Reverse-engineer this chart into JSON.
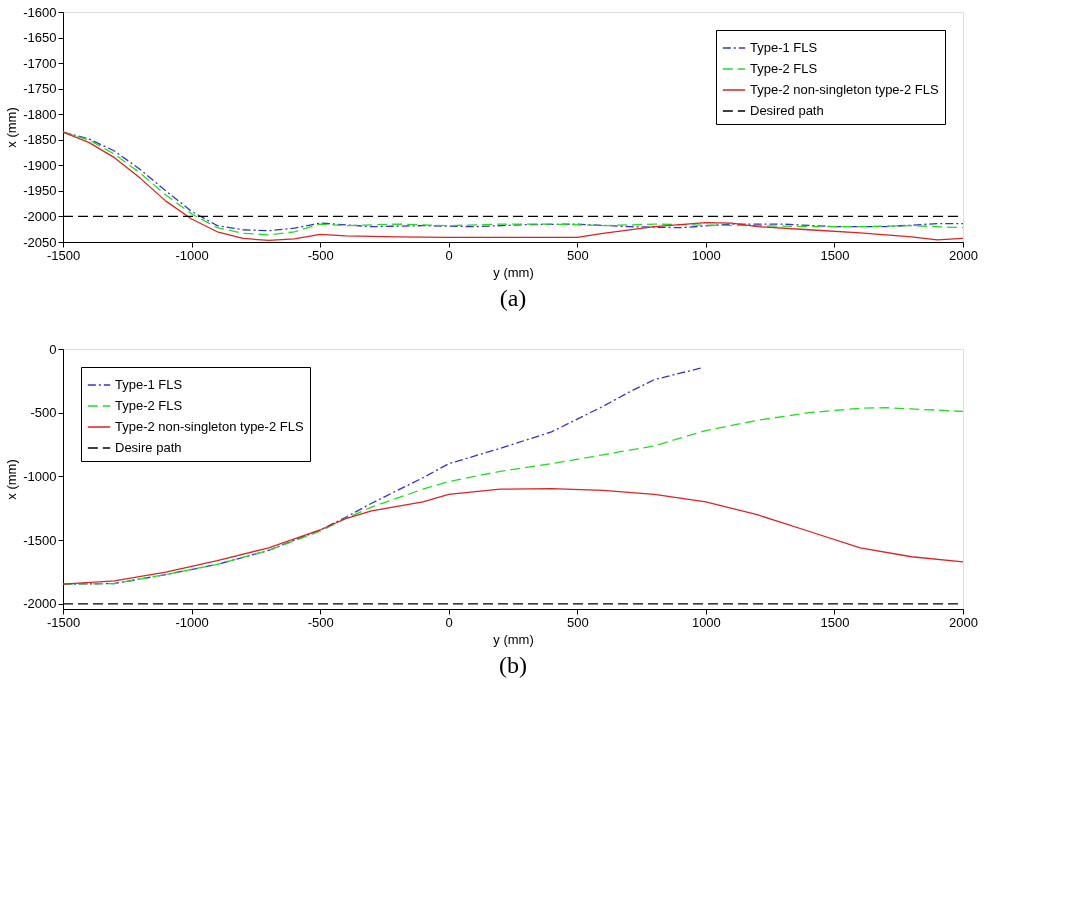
{
  "chart_data": [
    {
      "type": "line",
      "xlabel": "y (mm)",
      "ylabel": "x (mm)",
      "xlim": [
        -1500,
        2000
      ],
      "ylim": [
        -2050,
        -1600
      ],
      "xticks": [
        -1500,
        -1000,
        -500,
        0,
        500,
        1000,
        1500,
        2000
      ],
      "yticks": [
        -2050,
        -2000,
        -1950,
        -1900,
        -1850,
        -1800,
        -1750,
        -1700,
        -1650,
        -1600
      ],
      "grid": false,
      "legend": "top right",
      "annotations": [
        "(a)"
      ],
      "series": [
        {
          "name": "Type-1 FLS",
          "color": "#3333cc",
          "line_style": "dashdot",
          "x": [
            -1500,
            -1400,
            -1300,
            -1200,
            -1100,
            -1000,
            -900,
            -800,
            -700,
            -600,
            -500,
            -300,
            -100,
            100,
            300,
            500,
            700,
            900,
            1100,
            1300,
            1500,
            1700,
            1900,
            2000
          ],
          "values": [
            -1835,
            -1848,
            -1872,
            -1908,
            -1950,
            -1990,
            -2018,
            -2026,
            -2028,
            -2023,
            -2013,
            -2020,
            -2018,
            -2020,
            -2016,
            -2015,
            -2020,
            -2022,
            -2015,
            -2015,
            -2020,
            -2020,
            -2014,
            -2014
          ]
        },
        {
          "name": "Type-2 FLS",
          "color": "#22dd22",
          "line_style": "dashed",
          "x": [
            -1500,
            -1400,
            -1300,
            -1200,
            -1100,
            -1000,
            -900,
            -800,
            -700,
            -600,
            -500,
            -400,
            -200,
            0,
            200,
            400,
            600,
            800,
            1000,
            1200,
            1400,
            1600,
            1800,
            2000
          ],
          "values": [
            -1835,
            -1850,
            -1878,
            -1915,
            -1958,
            -1995,
            -2022,
            -2033,
            -2036,
            -2030,
            -2015,
            -2018,
            -2015,
            -2018,
            -2015,
            -2015,
            -2018,
            -2015,
            -2017,
            -2018,
            -2020,
            -2020,
            -2018,
            -2022
          ]
        },
        {
          "name": "Type-2 non-singleton type-2 FLS",
          "color": "#dd2222",
          "line_style": "solid",
          "x": [
            -1500,
            -1400,
            -1300,
            -1200,
            -1100,
            -1000,
            -900,
            -800,
            -700,
            -600,
            -500,
            -400,
            -200,
            0,
            200,
            500,
            600,
            800,
            1000,
            1100,
            1200,
            1400,
            1600,
            1800,
            1900,
            2000
          ],
          "values": [
            -1835,
            -1855,
            -1885,
            -1925,
            -1970,
            -2005,
            -2030,
            -2043,
            -2047,
            -2044,
            -2035,
            -2038,
            -2040,
            -2041,
            -2041,
            -2041,
            -2033,
            -2020,
            -2012,
            -2013,
            -2020,
            -2026,
            -2032,
            -2040,
            -2046,
            -2043
          ]
        },
        {
          "name": "Desired path",
          "color": "#000000",
          "line_style": "dashed",
          "x": [
            -1500,
            2000
          ],
          "values": [
            -2000,
            -2000
          ]
        }
      ]
    },
    {
      "type": "line",
      "xlabel": "y (mm)",
      "ylabel": "x (mm)",
      "xlim": [
        -1500,
        2000
      ],
      "ylim": [
        -2040,
        0
      ],
      "xticks": [
        -1500,
        -1000,
        -500,
        0,
        500,
        1000,
        1500,
        2000
      ],
      "yticks": [
        -2000,
        -1500,
        -1000,
        -500,
        0
      ],
      "grid": false,
      "legend": "top left",
      "annotations": [
        "(b)"
      ],
      "series": [
        {
          "name": "Type-1 FLS",
          "color": "#3333cc",
          "line_style": "dashdot",
          "x": [
            -1500,
            -1300,
            -1100,
            -900,
            -700,
            -500,
            -400,
            -300,
            -100,
            0,
            200,
            400,
            600,
            700,
            800,
            900,
            980
          ],
          "values": [
            -1845,
            -1840,
            -1770,
            -1690,
            -1580,
            -1420,
            -1320,
            -1210,
            -1010,
            -900,
            -780,
            -650,
            -450,
            -340,
            -240,
            -190,
            -150
          ]
        },
        {
          "name": "Type-2 FLS",
          "color": "#22dd22",
          "line_style": "dashed",
          "x": [
            -1500,
            -1300,
            -1100,
            -900,
            -700,
            -500,
            -400,
            -300,
            -100,
            0,
            200,
            400,
            600,
            800,
            1000,
            1200,
            1400,
            1600,
            1700,
            1800,
            2000
          ],
          "values": [
            -1845,
            -1840,
            -1770,
            -1690,
            -1580,
            -1430,
            -1330,
            -1240,
            -1100,
            -1040,
            -960,
            -900,
            -830,
            -760,
            -640,
            -560,
            -500,
            -465,
            -460,
            -470,
            -490
          ]
        },
        {
          "name": "Type-2 non-singleton type-2 FLS",
          "color": "#dd2222",
          "line_style": "solid",
          "x": [
            -1500,
            -1300,
            -1100,
            -900,
            -700,
            -500,
            -400,
            -300,
            -100,
            0,
            200,
            400,
            600,
            800,
            1000,
            1200,
            1400,
            1600,
            1800,
            2000
          ],
          "values": [
            -1845,
            -1820,
            -1750,
            -1660,
            -1560,
            -1420,
            -1330,
            -1270,
            -1200,
            -1140,
            -1100,
            -1095,
            -1110,
            -1140,
            -1200,
            -1300,
            -1430,
            -1560,
            -1630,
            -1670
          ]
        },
        {
          "name": "Desire path",
          "color": "#000000",
          "line_style": "dashed",
          "x": [
            -1500,
            2000
          ],
          "values": [
            -2000,
            -2000
          ]
        }
      ]
    }
  ]
}
